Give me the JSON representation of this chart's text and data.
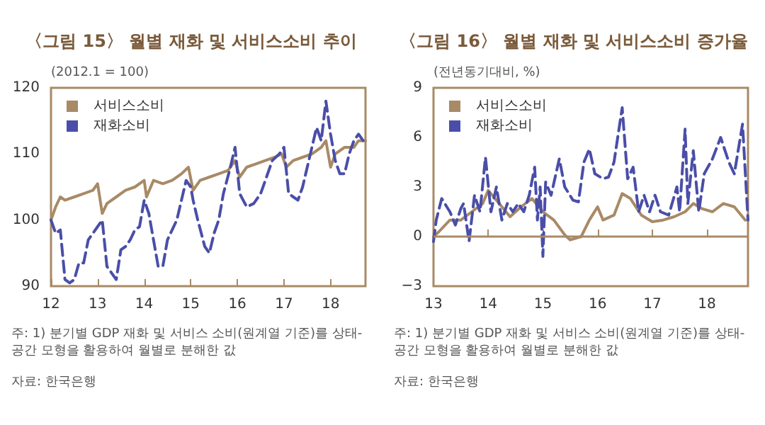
{
  "chart_data": [
    {
      "type": "line",
      "title": "〈그림 15〉 월별 재화 및 서비스소비 추이",
      "ylabel": "(2012.1 = 100)",
      "xlim": [
        2012,
        2018.75
      ],
      "xticks": [
        {
          "value": 2012,
          "label": "12"
        },
        {
          "value": 2013,
          "label": "13"
        },
        {
          "value": 2014,
          "label": "14"
        },
        {
          "value": 2015,
          "label": "15"
        },
        {
          "value": 2016,
          "label": "16"
        },
        {
          "value": 2017,
          "label": "17"
        },
        {
          "value": 2018,
          "label": "18"
        }
      ],
      "ylim": [
        90,
        120
      ],
      "yticks": [
        90,
        100,
        110,
        120
      ],
      "grid": false,
      "legend": "top left",
      "series": [
        {
          "name": "서비스소비",
          "color": "#a88a66",
          "line_style": "solid",
          "x": [
            2012.0,
            2012.1,
            2012.2,
            2012.3,
            2012.5,
            2012.7,
            2012.9,
            2013.0,
            2013.1,
            2013.2,
            2013.4,
            2013.6,
            2013.8,
            2014.0,
            2014.05,
            2014.2,
            2014.4,
            2014.6,
            2014.8,
            2014.95,
            2015.05,
            2015.2,
            2015.4,
            2015.6,
            2015.8,
            2015.95,
            2016.05,
            2016.2,
            2016.4,
            2016.6,
            2016.8,
            2016.95,
            2017.05,
            2017.2,
            2017.4,
            2017.6,
            2017.8,
            2017.9,
            2018.0,
            2018.1,
            2018.3,
            2018.5,
            2018.6,
            2018.75
          ],
          "values": [
            100,
            102,
            103.5,
            103,
            103.5,
            104,
            104.5,
            105.5,
            101,
            102.5,
            103.5,
            104.5,
            105,
            106,
            103.5,
            106,
            105.5,
            106,
            107,
            108,
            104.5,
            106,
            106.5,
            107,
            107.5,
            109,
            106.5,
            108,
            108.5,
            109,
            109.5,
            110,
            108,
            109,
            109.5,
            110,
            111,
            112,
            108,
            110,
            111,
            111,
            112,
            112
          ]
        },
        {
          "name": "재화소비",
          "color": "#4a4ea8",
          "line_style": "dashed",
          "x": [
            2012.0,
            2012.1,
            2012.2,
            2012.3,
            2012.4,
            2012.5,
            2012.6,
            2012.7,
            2012.8,
            2012.9,
            2013.0,
            2013.1,
            2013.2,
            2013.3,
            2013.4,
            2013.5,
            2013.6,
            2013.7,
            2013.8,
            2013.9,
            2014.0,
            2014.1,
            2014.2,
            2014.3,
            2014.4,
            2014.5,
            2014.6,
            2014.7,
            2014.8,
            2014.9,
            2015.0,
            2015.05,
            2015.15,
            2015.3,
            2015.4,
            2015.5,
            2015.6,
            2015.7,
            2015.85,
            2015.95,
            2016.05,
            2016.2,
            2016.35,
            2016.5,
            2016.6,
            2016.75,
            2016.9,
            2017.0,
            2017.1,
            2017.2,
            2017.3,
            2017.4,
            2017.5,
            2017.6,
            2017.7,
            2017.8,
            2017.9,
            2018.0,
            2018.1,
            2018.2,
            2018.3,
            2018.4,
            2018.5,
            2018.6,
            2018.7
          ],
          "values": [
            100,
            98,
            98.5,
            91,
            90.5,
            91,
            93.5,
            93.5,
            97,
            98,
            99,
            100,
            93,
            92,
            91,
            95.5,
            96,
            97,
            98.5,
            99,
            103,
            101,
            97,
            93,
            93,
            97,
            98.5,
            100,
            103,
            106,
            105,
            103,
            100,
            96,
            95,
            98,
            100,
            104,
            108,
            111,
            104,
            102,
            102.5,
            104,
            106,
            109,
            110,
            111,
            104,
            103.5,
            103,
            105,
            108,
            111,
            114,
            112,
            118,
            113,
            109,
            107,
            107,
            110,
            112,
            113,
            112
          ]
        }
      ],
      "annotations": [
        "주: 1) 분기별 GDP 재화 및 서비스 소비(원계열 기준)를 상태-공간 모형을 활용하여 월별로 분해한 값",
        "자료: 한국은행"
      ]
    },
    {
      "type": "line",
      "title": "〈그림 16〉 월별 재화 및 서비스소비 증가율",
      "ylabel": "(전년동기대비, %)",
      "xlim": [
        2013,
        2018.75
      ],
      "xticks": [
        {
          "value": 2013,
          "label": "13"
        },
        {
          "value": 2014,
          "label": "14"
        },
        {
          "value": 2015,
          "label": "15"
        },
        {
          "value": 2016,
          "label": "16"
        },
        {
          "value": 2017,
          "label": "17"
        },
        {
          "value": 2018,
          "label": "18"
        }
      ],
      "ylim": [
        -3,
        9
      ],
      "yticks": [
        {
          "value": -3,
          "label": "−3"
        },
        0,
        3,
        6,
        9
      ],
      "grid": false,
      "legend": "top left",
      "ref_lines": [
        {
          "axis": "y",
          "value": 0,
          "color": "#a88a66"
        }
      ],
      "series": [
        {
          "name": "서비스소비",
          "color": "#a88a66",
          "line_style": "solid",
          "x": [
            2013.0,
            2013.1,
            2013.3,
            2013.5,
            2013.7,
            2013.9,
            2014.0,
            2014.2,
            2014.4,
            2014.6,
            2014.8,
            2015.0,
            2015.2,
            2015.4,
            2015.5,
            2015.7,
            2015.85,
            2016.0,
            2016.1,
            2016.3,
            2016.45,
            2016.6,
            2016.8,
            2017.0,
            2017.2,
            2017.4,
            2017.6,
            2017.75,
            2017.9,
            2018.1,
            2018.3,
            2018.5,
            2018.7
          ],
          "values": [
            0,
            0.3,
            1,
            1,
            1.5,
            2,
            2.8,
            2,
            1.2,
            1.8,
            2.3,
            1.5,
            1,
            0.1,
            -0.2,
            0,
            1,
            1.8,
            1,
            1.3,
            2.6,
            2.3,
            1.3,
            0.9,
            1,
            1.2,
            1.5,
            2,
            1.7,
            1.5,
            2,
            1.8,
            1
          ]
        },
        {
          "name": "재화소비",
          "color": "#4a4ea8",
          "line_style": "dashed",
          "x": [
            2013.0,
            2013.05,
            2013.15,
            2013.3,
            2013.4,
            2013.5,
            2013.55,
            2013.65,
            2013.75,
            2013.85,
            2013.95,
            2014.05,
            2014.15,
            2014.25,
            2014.35,
            2014.45,
            2014.55,
            2014.65,
            2014.75,
            2014.85,
            2014.9,
            2014.95,
            2015.0,
            2015.05,
            2015.15,
            2015.3,
            2015.4,
            2015.55,
            2015.65,
            2015.75,
            2015.85,
            2015.95,
            2016.1,
            2016.2,
            2016.3,
            2016.45,
            2016.55,
            2016.65,
            2016.75,
            2016.85,
            2016.95,
            2017.05,
            2017.15,
            2017.3,
            2017.45,
            2017.5,
            2017.6,
            2017.65,
            2017.75,
            2017.85,
            2017.95,
            2018.1,
            2018.25,
            2018.4,
            2018.5,
            2018.65,
            2018.75
          ],
          "values": [
            -0.3,
            1,
            2.3,
            1.5,
            0.7,
            1.7,
            2,
            -0.3,
            2.5,
            1.5,
            4.8,
            1.5,
            3,
            1,
            2,
            1.5,
            2,
            1.5,
            2.5,
            4.2,
            1,
            3,
            -1.2,
            3.3,
            2.5,
            4.7,
            3,
            2.2,
            2.1,
            4.5,
            5.3,
            3.8,
            3.5,
            3.6,
            4.5,
            7.8,
            3.5,
            4.2,
            1.5,
            2.5,
            1.5,
            2.5,
            1.5,
            1.3,
            3,
            1.5,
            6.5,
            2,
            5.2,
            1.5,
            3.8,
            4.7,
            6,
            4.5,
            3.8,
            6.8,
            1
          ]
        }
      ],
      "annotations": [
        "주: 1) 분기별 GDP 재화 및 서비스 소비(원계열 기준)를 상태-공간 모형을 활용하여 월별로 분해한 값",
        "자료: 한국은행"
      ]
    }
  ]
}
